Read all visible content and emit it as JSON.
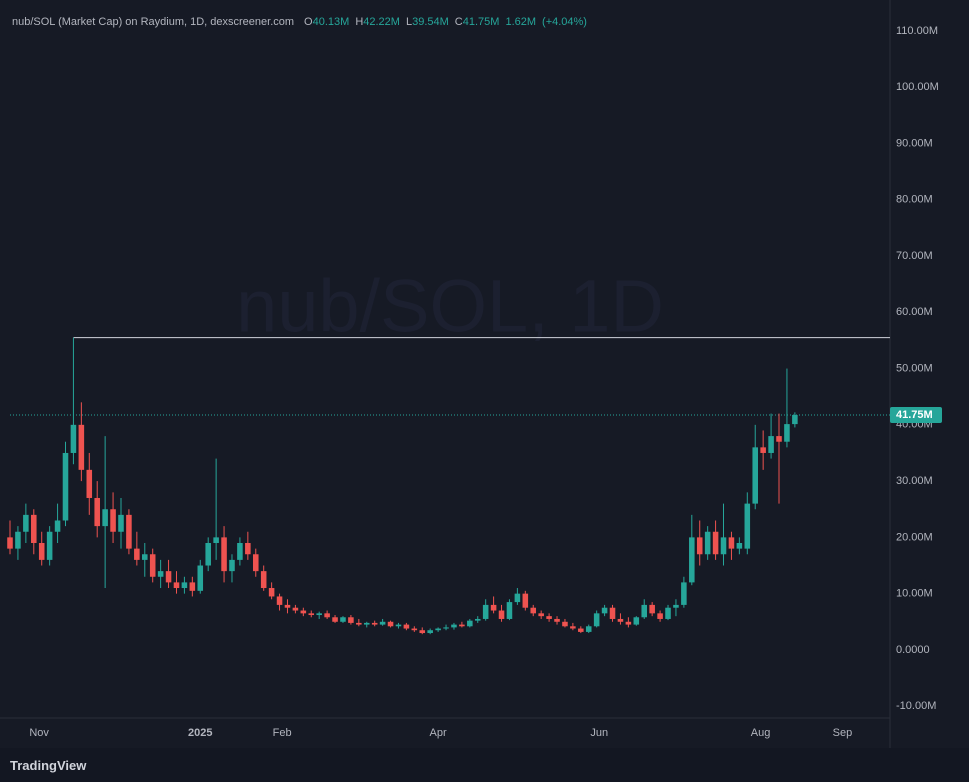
{
  "chart_data": {
    "type": "candlestick",
    "title": "nub/SOL (Market Cap) on Raydium, 1D, dexscreener.com",
    "watermark": "nub/SOL, 1D",
    "ohlc_legend": [
      {
        "key": "O",
        "value": 40.13,
        "label": "40.13M"
      },
      {
        "key": "H",
        "value": 42.22,
        "label": "42.22M"
      },
      {
        "key": "L",
        "value": 39.54,
        "label": "39.54M"
      },
      {
        "key": "C",
        "value": 41.75,
        "label": "41.75M"
      }
    ],
    "change": {
      "value": 1.62,
      "label": "1.62M"
    },
    "change_pct": {
      "value": 4.04,
      "label": "(+4.04%)"
    },
    "up_color": "#26a69a",
    "down_color": "#ef5350",
    "candles": [
      [
        20,
        23,
        17,
        18
      ],
      [
        18,
        22,
        16,
        21
      ],
      [
        21,
        26,
        19,
        24
      ],
      [
        24,
        25,
        17,
        19
      ],
      [
        19,
        21,
        15,
        16
      ],
      [
        16,
        22,
        15,
        21
      ],
      [
        21,
        26,
        19,
        23
      ],
      [
        23,
        37,
        22,
        35
      ],
      [
        35,
        55.5,
        33,
        40
      ],
      [
        40,
        44,
        30,
        32
      ],
      [
        32,
        35,
        24,
        27
      ],
      [
        27,
        30,
        20,
        22
      ],
      [
        22,
        38,
        11,
        25
      ],
      [
        25,
        28,
        19,
        21
      ],
      [
        21,
        27,
        18,
        24
      ],
      [
        24,
        25,
        17,
        18
      ],
      [
        18,
        21,
        15,
        16
      ],
      [
        16,
        19,
        13,
        17
      ],
      [
        17,
        18,
        12,
        13
      ],
      [
        13,
        16,
        11,
        14
      ],
      [
        14,
        16,
        11,
        12
      ],
      [
        12,
        14,
        10,
        11
      ],
      [
        11,
        13,
        10,
        12
      ],
      [
        12,
        13,
        9.5,
        10.5
      ],
      [
        10.5,
        16,
        10,
        15
      ],
      [
        15,
        20,
        14,
        19
      ],
      [
        19,
        34,
        16,
        20
      ],
      [
        20,
        22,
        12,
        14
      ],
      [
        14,
        17,
        12,
        16
      ],
      [
        16,
        20,
        15,
        19
      ],
      [
        19,
        21,
        16,
        17
      ],
      [
        17,
        18,
        13,
        14
      ],
      [
        14,
        15,
        10.5,
        11
      ],
      [
        11,
        12,
        9,
        9.5
      ],
      [
        9.5,
        10,
        7,
        8
      ],
      [
        8,
        9,
        6.5,
        7.5
      ],
      [
        7.5,
        8,
        6.5,
        7
      ],
      [
        7,
        7.5,
        6,
        6.5
      ],
      [
        6.5,
        7,
        5.8,
        6.2
      ],
      [
        6.2,
        6.8,
        5.5,
        6.5
      ],
      [
        6.5,
        7,
        5.5,
        5.8
      ],
      [
        5.8,
        6.2,
        4.8,
        5
      ],
      [
        5,
        6,
        4.8,
        5.8
      ],
      [
        5.8,
        6.2,
        4.5,
        4.8
      ],
      [
        4.8,
        5.5,
        4.2,
        4.5
      ],
      [
        4.5,
        5,
        4,
        4.8
      ],
      [
        4.8,
        5.2,
        4.2,
        4.5
      ],
      [
        4.5,
        5.5,
        4.3,
        5
      ],
      [
        5,
        5.2,
        4,
        4.2
      ],
      [
        4.2,
        4.8,
        3.8,
        4.5
      ],
      [
        4.5,
        4.8,
        3.5,
        3.8
      ],
      [
        3.8,
        4.2,
        3.2,
        3.5
      ],
      [
        3.5,
        4,
        2.8,
        3
      ],
      [
        3,
        3.8,
        2.8,
        3.5
      ],
      [
        3.5,
        4,
        3.2,
        3.8
      ],
      [
        3.8,
        4.5,
        3.5,
        4
      ],
      [
        4,
        4.8,
        3.6,
        4.5
      ],
      [
        4.5,
        5,
        4,
        4.2
      ],
      [
        4.2,
        5.5,
        4,
        5.2
      ],
      [
        5.2,
        6,
        4.8,
        5.5
      ],
      [
        5.5,
        9,
        5.2,
        8
      ],
      [
        8,
        9.5,
        6.5,
        7
      ],
      [
        7,
        8,
        5,
        5.5
      ],
      [
        5.5,
        9,
        5.3,
        8.5
      ],
      [
        8.5,
        11,
        8,
        10
      ],
      [
        10,
        10.5,
        7,
        7.5
      ],
      [
        7.5,
        8,
        6,
        6.5
      ],
      [
        6.5,
        7,
        5.5,
        6
      ],
      [
        6,
        6.5,
        5,
        5.5
      ],
      [
        5.5,
        6,
        4.5,
        5
      ],
      [
        5,
        5.5,
        4,
        4.2
      ],
      [
        4.2,
        4.8,
        3.5,
        3.8
      ],
      [
        3.8,
        4.2,
        3,
        3.2
      ],
      [
        3.2,
        4.5,
        3,
        4.2
      ],
      [
        4.2,
        7,
        4,
        6.5
      ],
      [
        6.5,
        8,
        6,
        7.5
      ],
      [
        7.5,
        8,
        5,
        5.5
      ],
      [
        5.5,
        6.5,
        4.5,
        5
      ],
      [
        5,
        5.8,
        4,
        4.5
      ],
      [
        4.5,
        6,
        4.3,
        5.8
      ],
      [
        5.8,
        9,
        5.5,
        8
      ],
      [
        8,
        8.5,
        6,
        6.5
      ],
      [
        6.5,
        7,
        5,
        5.5
      ],
      [
        5.5,
        8,
        5.3,
        7.5
      ],
      [
        7.5,
        9,
        6,
        8
      ],
      [
        8,
        13,
        7.5,
        12
      ],
      [
        12,
        24,
        11.5,
        20
      ],
      [
        20,
        23,
        15,
        17
      ],
      [
        17,
        22,
        16,
        21
      ],
      [
        21,
        23,
        16,
        17
      ],
      [
        17,
        26,
        15,
        20
      ],
      [
        20,
        21,
        16,
        18
      ],
      [
        18,
        20,
        17,
        19
      ],
      [
        18,
        28,
        17,
        26
      ],
      [
        26,
        40,
        25,
        36
      ],
      [
        36,
        39,
        32,
        35
      ],
      [
        35,
        42,
        34,
        38
      ],
      [
        38,
        42,
        26,
        37
      ],
      [
        37,
        50,
        36,
        40.13
      ],
      [
        40.13,
        42.22,
        39.54,
        41.75
      ]
    ],
    "last_price": {
      "value": 41.75,
      "label": "41.75M"
    },
    "high_line": 55.5,
    "xlim": [
      0,
      111
    ],
    "xticks": [
      {
        "value": 3.67,
        "label": "Nov"
      },
      {
        "value": 24,
        "label": "2025"
      },
      {
        "value": 34.33,
        "label": "Feb"
      },
      {
        "value": 54,
        "label": "Apr"
      },
      {
        "value": 74.33,
        "label": "Jun"
      },
      {
        "value": 94.67,
        "label": "Aug"
      },
      {
        "value": 105,
        "label": "Sep"
      }
    ],
    "ylim": [
      -12.1,
      115.5
    ],
    "yticks": [
      {
        "value": -10,
        "label": "-10.00M"
      },
      {
        "value": 0,
        "label": "0.0000"
      },
      {
        "value": 10,
        "label": "10.00M"
      },
      {
        "value": 20,
        "label": "20.00M"
      },
      {
        "value": 30,
        "label": "30.00M"
      },
      {
        "value": 40,
        "label": "40.00M"
      },
      {
        "value": 50,
        "label": "50.00M"
      },
      {
        "value": 60,
        "label": "60.00M"
      },
      {
        "value": 70,
        "label": "70.00M"
      },
      {
        "value": 80,
        "label": "80.00M"
      },
      {
        "value": 90,
        "label": "90.00M"
      },
      {
        "value": 100,
        "label": "100.00M"
      },
      {
        "value": 110,
        "label": "110.00M"
      }
    ],
    "brand": "TradingView"
  }
}
